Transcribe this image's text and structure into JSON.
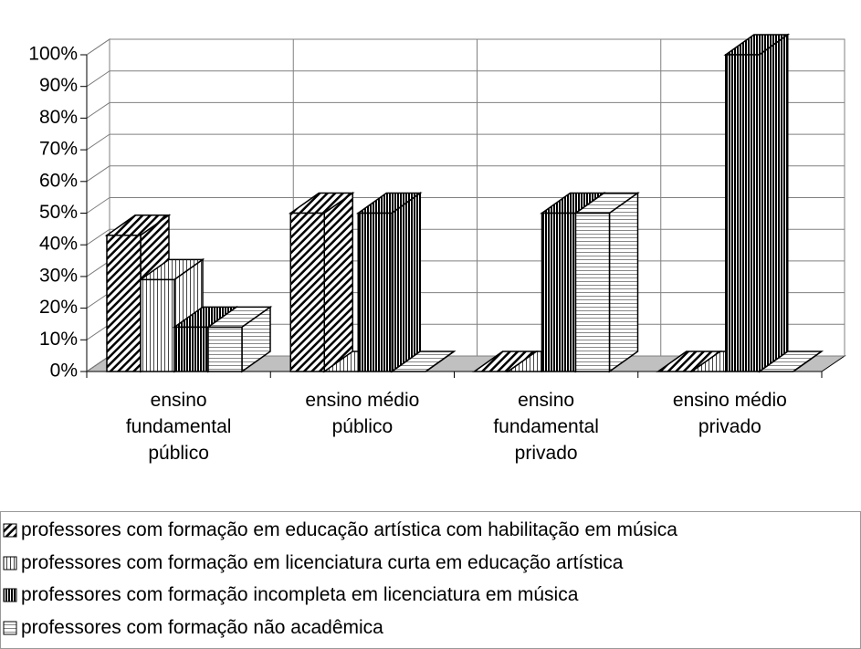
{
  "chart_data": {
    "type": "bar3d",
    "categories": [
      "ensino fundamental público",
      "ensino médio público",
      "ensino fundamental privado",
      "ensino médio privado"
    ],
    "series": [
      {
        "name": "professores com formação em educação artística com habilitação em música",
        "color": "#808080",
        "values": [
          43,
          50,
          0,
          0
        ]
      },
      {
        "name": "professores com formação em licenciatura curta em educação artística",
        "color": "#d0d0d0",
        "values": [
          29,
          0,
          0,
          0
        ]
      },
      {
        "name": "professores com formação incompleta em licenciatura em música",
        "color": "#505050",
        "values": [
          14,
          50,
          50,
          100
        ]
      },
      {
        "name": "professores com formação não acadêmica",
        "color": "#f0f0f0",
        "values": [
          14,
          0,
          50,
          0
        ]
      }
    ],
    "ylim": [
      0,
      100
    ],
    "yticks": [
      {
        "value": 0,
        "label": "0%"
      },
      {
        "value": 10,
        "label": "10%"
      },
      {
        "value": 20,
        "label": "20%"
      },
      {
        "value": 30,
        "label": "30%"
      },
      {
        "value": 40,
        "label": "40%"
      },
      {
        "value": 50,
        "label": "50%"
      },
      {
        "value": 60,
        "label": "60%"
      },
      {
        "value": 70,
        "label": "70%"
      },
      {
        "value": 80,
        "label": "80%"
      },
      {
        "value": 90,
        "label": "90%"
      },
      {
        "value": 100,
        "label": "100%"
      }
    ],
    "grid": true
  }
}
